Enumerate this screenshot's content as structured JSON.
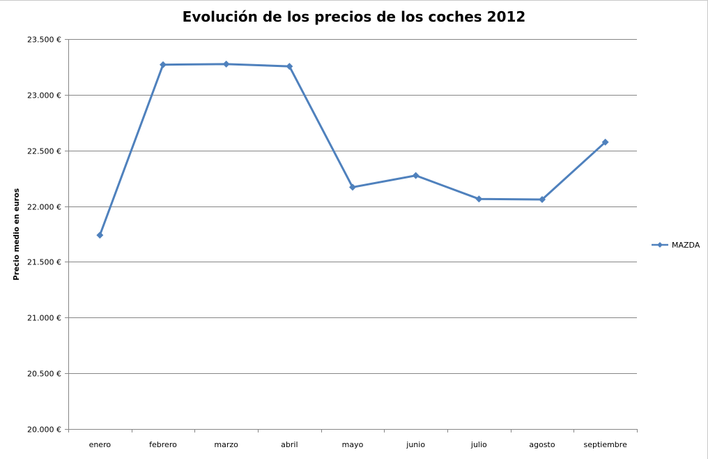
{
  "chart_data": {
    "type": "line",
    "title": "Evolución de los precios de los coches 2012",
    "xlabel": "",
    "ylabel": "Precio medio en euros",
    "categories": [
      "enero",
      "febrero",
      "marzo",
      "abril",
      "mayo",
      "junio",
      "julio",
      "agosto",
      "septiembre"
    ],
    "series": [
      {
        "name": "MAZDA",
        "values": [
          21740,
          23270,
          23275,
          23255,
          22170,
          22275,
          22065,
          22060,
          22575
        ],
        "color": "#4f81bd",
        "marker": "diamond"
      }
    ],
    "ylim": [
      20000,
      23500
    ],
    "yticks": [
      20000,
      20500,
      21000,
      21500,
      22000,
      22500,
      23000,
      23500
    ],
    "ytick_labels": [
      "20.000 €",
      "20.500 €",
      "21.000 €",
      "21.500 €",
      "22.000 €",
      "22.500 €",
      "23.000 €",
      "23.500 €"
    ],
    "grid": true,
    "gridline_color": "#868686",
    "legend_position": "right"
  }
}
